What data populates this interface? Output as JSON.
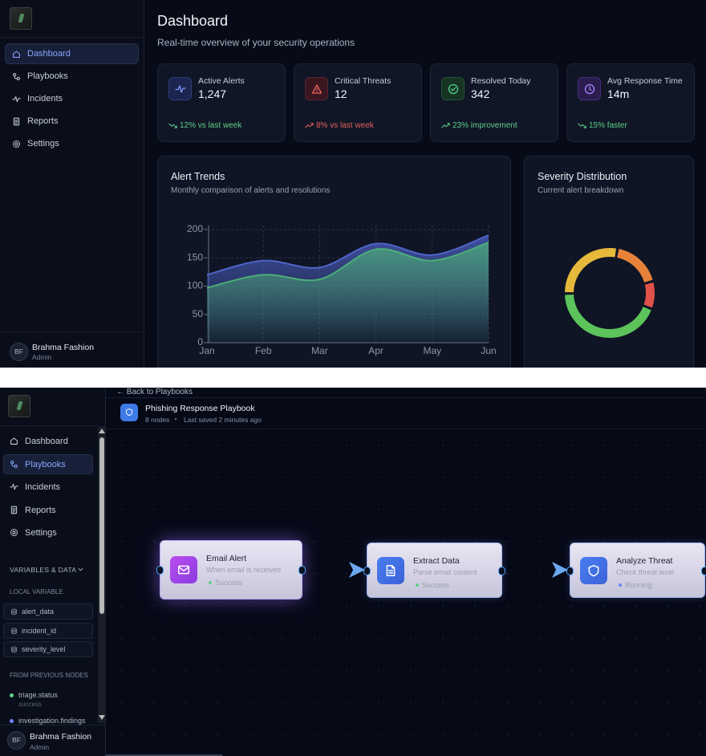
{
  "dashboard": {
    "sidebar": {
      "nav": [
        "Dashboard",
        "Playbooks",
        "Incidents",
        "Reports",
        "Settings"
      ],
      "user": {
        "initials": "BF",
        "name": "Brahma Fashion",
        "role": "Admin"
      }
    },
    "header": {
      "title": "Dashboard",
      "subtitle": "Real-time overview of your security operations"
    },
    "stats": [
      {
        "label": "Active Alerts",
        "value": "1,247",
        "change": "12% vs last week"
      },
      {
        "label": "Critical Threats",
        "value": "12",
        "change": "8% vs last week"
      },
      {
        "label": "Resolved Today",
        "value": "342",
        "change": "23% improvement"
      },
      {
        "label": "Avg Response Time",
        "value": "14m",
        "change": "15% faster"
      }
    ],
    "alert_trends": {
      "title": "Alert Trends",
      "subtitle": "Monthly comparison of alerts and resolutions",
      "chart_data": {
        "type": "area",
        "categories": [
          "Jan",
          "Feb",
          "Mar",
          "Apr",
          "May",
          "Jun"
        ],
        "series": [
          {
            "color": "#4f63c9",
            "values": [
              120,
              145,
              133,
              175,
              155,
              190
            ]
          },
          {
            "color": "#4caf78",
            "values": [
              97,
              120,
              112,
              165,
              145,
              177
            ]
          }
        ],
        "ylim": [
          0,
          200
        ],
        "yticks": [
          0,
          50,
          100,
          150,
          200
        ],
        "grid": true
      }
    },
    "severity": {
      "title": "Severity Distribution",
      "subtitle": "Current alert breakdown",
      "chart_data": {
        "type": "donut",
        "values": [
          18,
          10,
          44,
          28
        ],
        "colors": [
          "#e8823a",
          "#e0514b",
          "#5cc45a",
          "#e6b93c"
        ]
      }
    }
  },
  "playbook_editor": {
    "back_link": "← Back to Playbooks",
    "title": "Phishing Response Playbook",
    "node_count": "8 nodes",
    "saved": "Last saved 2 minutes ago",
    "sidebar": {
      "nav": [
        "Dashboard",
        "Playbooks",
        "Incidents",
        "Reports",
        "Settings"
      ],
      "section_title": "VARIABLES & DATA",
      "local_title": "LOCAL VARIABLE",
      "local_variables": [
        "alert_data",
        "incident_id",
        "severity_level"
      ],
      "previous_title": "FROM PREVIOUS NODES",
      "previous": [
        {
          "name": "triage.status",
          "value": "success"
        },
        {
          "name": "investigation.findings"
        }
      ],
      "user": {
        "initials": "BF",
        "name": "Brahma Fashion",
        "role": "Admin"
      }
    },
    "nodes": [
      {
        "title": "Email Alert",
        "description": "When email is received",
        "status": "Success"
      },
      {
        "title": "Extract Data",
        "description": "Parse email content",
        "status": "Success"
      },
      {
        "title": "Analyze Threat",
        "description": "Check threat level",
        "status": "Running"
      }
    ]
  }
}
